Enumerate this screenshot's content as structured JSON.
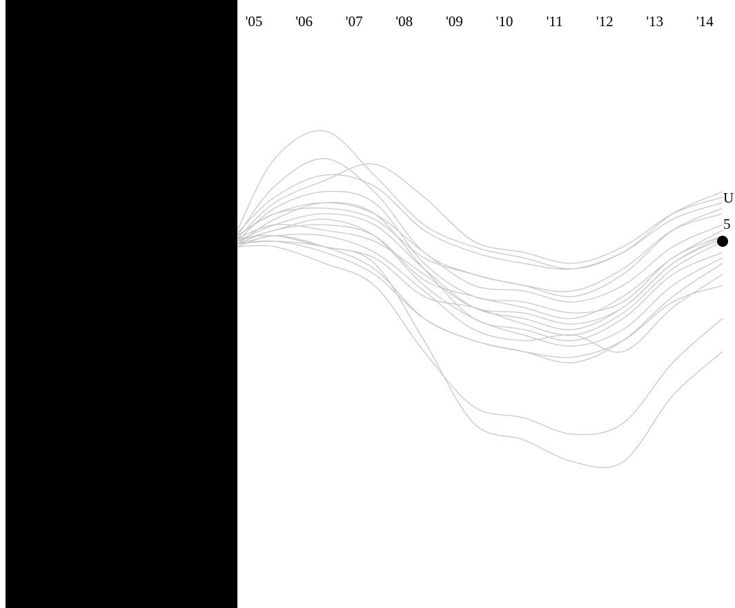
{
  "chart_data": {
    "type": "line",
    "title": "",
    "xlabel": "",
    "ylabel": "",
    "x_ticks": [
      "'05",
      "'06",
      "'07",
      "'08",
      "'09",
      "'10",
      "'11",
      "'12",
      "'13",
      "'14"
    ],
    "x_domain": [
      2004.75,
      2014.5
    ],
    "y_domain": [
      -50,
      25
    ],
    "grid": false,
    "legend": "none",
    "highlight": {
      "label_line1": "U",
      "label_line2": "5",
      "series_index": 0
    },
    "colors": {
      "series": "#c8c8c8",
      "highlight": "#000000",
      "mask": "#000000"
    },
    "series": [
      {
        "values": [
          [
            2004.75,
            0.5
          ],
          [
            2005.5,
            1.0
          ],
          [
            2006.5,
            -1.0
          ],
          [
            2007.5,
            -3.0
          ],
          [
            2008.5,
            -10.0
          ],
          [
            2009.5,
            -12.0
          ],
          [
            2010.5,
            -15.0
          ],
          [
            2011.5,
            -17.0
          ],
          [
            2012.5,
            -13.0
          ],
          [
            2013.5,
            -5.0
          ],
          [
            2014.5,
            0.0
          ]
        ]
      },
      {
        "values": [
          [
            2004.75,
            -0.5
          ],
          [
            2005.5,
            2.0
          ],
          [
            2006.5,
            3.0
          ],
          [
            2007.5,
            1.0
          ],
          [
            2008.5,
            -7.0
          ],
          [
            2009.5,
            -10.0
          ],
          [
            2010.5,
            -12.0
          ],
          [
            2011.5,
            -14.0
          ],
          [
            2012.5,
            -10.0
          ],
          [
            2013.5,
            -3.0
          ],
          [
            2014.5,
            2.0
          ]
        ]
      },
      {
        "values": [
          [
            2004.75,
            1.0
          ],
          [
            2005.5,
            5.0
          ],
          [
            2006.5,
            6.0
          ],
          [
            2007.5,
            4.0
          ],
          [
            2008.5,
            -3.0
          ],
          [
            2009.5,
            -6.0
          ],
          [
            2010.5,
            -8.0
          ],
          [
            2011.5,
            -9.0
          ],
          [
            2012.5,
            -5.0
          ],
          [
            2013.5,
            2.0
          ],
          [
            2014.5,
            5.0
          ]
        ]
      },
      {
        "values": [
          [
            2004.75,
            0.0
          ],
          [
            2005.5,
            3.0
          ],
          [
            2006.5,
            5.0
          ],
          [
            2007.5,
            3.0
          ],
          [
            2008.5,
            -5.0
          ],
          [
            2009.5,
            -12.0
          ],
          [
            2010.5,
            -14.0
          ],
          [
            2011.5,
            -16.0
          ],
          [
            2012.5,
            -12.0
          ],
          [
            2013.5,
            -4.0
          ],
          [
            2014.5,
            1.0
          ]
        ]
      },
      {
        "values": [
          [
            2004.75,
            1.5
          ],
          [
            2005.5,
            8.0
          ],
          [
            2006.5,
            12.0
          ],
          [
            2007.5,
            10.0
          ],
          [
            2008.5,
            2.0
          ],
          [
            2009.5,
            -2.0
          ],
          [
            2010.5,
            -4.0
          ],
          [
            2011.5,
            -5.0
          ],
          [
            2012.5,
            -2.0
          ],
          [
            2013.5,
            4.0
          ],
          [
            2014.5,
            7.0
          ]
        ]
      },
      {
        "values": [
          [
            2004.75,
            2.0
          ],
          [
            2005.5,
            15.0
          ],
          [
            2006.5,
            20.0
          ],
          [
            2007.5,
            12.0
          ],
          [
            2008.5,
            3.0
          ],
          [
            2009.5,
            -1.0
          ],
          [
            2010.5,
            -3.0
          ],
          [
            2011.5,
            -5.0
          ],
          [
            2012.5,
            -2.0
          ],
          [
            2013.5,
            5.0
          ],
          [
            2014.5,
            9.0
          ]
        ]
      },
      {
        "values": [
          [
            2004.75,
            1.0
          ],
          [
            2005.5,
            10.0
          ],
          [
            2006.5,
            15.0
          ],
          [
            2007.5,
            9.0
          ],
          [
            2008.5,
            -2.0
          ],
          [
            2009.5,
            -6.0
          ],
          [
            2010.5,
            -8.0
          ],
          [
            2011.5,
            -10.0
          ],
          [
            2012.5,
            -6.0
          ],
          [
            2013.5,
            2.0
          ],
          [
            2014.5,
            6.0
          ]
        ]
      },
      {
        "values": [
          [
            2004.75,
            0.5
          ],
          [
            2005.5,
            7.0
          ],
          [
            2006.5,
            11.0
          ],
          [
            2007.5,
            14.0
          ],
          [
            2008.5,
            8.0
          ],
          [
            2009.5,
            0.0
          ],
          [
            2010.5,
            -2.0
          ],
          [
            2011.5,
            -4.0
          ],
          [
            2012.5,
            -1.0
          ],
          [
            2013.5,
            5.0
          ],
          [
            2014.5,
            8.0
          ]
        ]
      },
      {
        "values": [
          [
            2004.75,
            -1.0
          ],
          [
            2005.5,
            1.0
          ],
          [
            2006.5,
            -1.0
          ],
          [
            2007.5,
            -5.0
          ],
          [
            2008.5,
            -14.0
          ],
          [
            2009.5,
            -18.0
          ],
          [
            2010.5,
            -20.0
          ],
          [
            2011.5,
            -22.0
          ],
          [
            2012.5,
            -18.0
          ],
          [
            2013.5,
            -10.0
          ],
          [
            2014.5,
            -4.0
          ]
        ]
      },
      {
        "values": [
          [
            2004.75,
            -0.5
          ],
          [
            2005.5,
            4.0
          ],
          [
            2006.5,
            7.0
          ],
          [
            2007.5,
            5.0
          ],
          [
            2008.5,
            -5.0
          ],
          [
            2009.5,
            -14.0
          ],
          [
            2010.5,
            -16.0
          ],
          [
            2011.5,
            -18.0
          ],
          [
            2012.5,
            -14.0
          ],
          [
            2013.5,
            -6.0
          ],
          [
            2014.5,
            -2.0
          ]
        ]
      },
      {
        "values": [
          [
            2004.75,
            0.0
          ],
          [
            2005.5,
            6.0
          ],
          [
            2006.5,
            9.0
          ],
          [
            2007.5,
            7.0
          ],
          [
            2008.5,
            -4.0
          ],
          [
            2009.5,
            -10.0
          ],
          [
            2010.5,
            -11.0
          ],
          [
            2011.5,
            -13.0
          ],
          [
            2012.5,
            -11.0
          ],
          [
            2013.5,
            -3.0
          ],
          [
            2014.5,
            1.0
          ]
        ]
      },
      {
        "values": [
          [
            2004.75,
            -1.0
          ],
          [
            2005.5,
            -1.0
          ],
          [
            2006.5,
            -4.0
          ],
          [
            2007.5,
            -8.0
          ],
          [
            2008.5,
            -20.0
          ],
          [
            2009.5,
            -30.0
          ],
          [
            2010.5,
            -32.0
          ],
          [
            2011.5,
            -35.0
          ],
          [
            2012.5,
            -33.0
          ],
          [
            2013.5,
            -22.0
          ],
          [
            2014.5,
            -14.0
          ]
        ]
      },
      {
        "values": [
          [
            2004.75,
            -0.5
          ],
          [
            2005.5,
            0.0
          ],
          [
            2006.5,
            -2.0
          ],
          [
            2007.5,
            -6.0
          ],
          [
            2008.5,
            -14.0
          ],
          [
            2009.5,
            -18.0
          ],
          [
            2010.5,
            -20.0
          ],
          [
            2011.5,
            -21.0
          ],
          [
            2012.5,
            -18.0
          ],
          [
            2013.5,
            -11.0
          ],
          [
            2014.5,
            -8.0
          ]
        ]
      },
      {
        "values": [
          [
            2004.75,
            0.0
          ],
          [
            2005.5,
            2.0
          ],
          [
            2006.5,
            4.0
          ],
          [
            2007.5,
            1.0
          ],
          [
            2008.5,
            -8.0
          ],
          [
            2009.5,
            -14.0
          ],
          [
            2010.5,
            -17.0
          ],
          [
            2011.5,
            -19.0
          ],
          [
            2012.5,
            -16.0
          ],
          [
            2013.5,
            -8.0
          ],
          [
            2014.5,
            -3.0
          ]
        ]
      },
      {
        "values": [
          [
            2004.75,
            1.0
          ],
          [
            2005.5,
            5.0
          ],
          [
            2006.5,
            7.0
          ],
          [
            2007.5,
            5.0
          ],
          [
            2008.5,
            -2.0
          ],
          [
            2009.5,
            -8.0
          ],
          [
            2010.5,
            -9.0
          ],
          [
            2011.5,
            -11.0
          ],
          [
            2012.5,
            -8.0
          ],
          [
            2013.5,
            -1.0
          ],
          [
            2014.5,
            3.0
          ]
        ]
      },
      {
        "values": [
          [
            2004.75,
            -0.5
          ],
          [
            2005.5,
            1.0
          ],
          [
            2006.5,
            1.0
          ],
          [
            2007.5,
            -2.0
          ],
          [
            2008.5,
            -9.0
          ],
          [
            2009.5,
            -16.0
          ],
          [
            2010.5,
            -18.0
          ],
          [
            2011.5,
            -17.0
          ],
          [
            2012.5,
            -20.0
          ],
          [
            2013.5,
            -12.0
          ],
          [
            2014.5,
            -6.0
          ]
        ]
      },
      {
        "values": [
          [
            2004.75,
            0.5
          ],
          [
            2005.5,
            3.0
          ],
          [
            2006.5,
            2.0
          ],
          [
            2007.5,
            0.0
          ],
          [
            2008.5,
            -6.0
          ],
          [
            2009.5,
            -12.0
          ],
          [
            2010.5,
            -13.0
          ],
          [
            2011.5,
            -15.0
          ],
          [
            2012.5,
            -12.0
          ],
          [
            2013.5,
            -4.0
          ],
          [
            2014.5,
            0.5
          ]
        ]
      },
      {
        "values": [
          [
            2004.75,
            -0.5
          ],
          [
            2005.5,
            0.0
          ],
          [
            2006.5,
            -1.0
          ],
          [
            2007.5,
            -4.0
          ],
          [
            2008.5,
            -18.0
          ],
          [
            2009.5,
            -33.0
          ],
          [
            2010.5,
            -36.0
          ],
          [
            2011.5,
            -40.0
          ],
          [
            2012.5,
            -40.0
          ],
          [
            2013.5,
            -28.0
          ],
          [
            2014.5,
            -20.0
          ]
        ]
      }
    ]
  }
}
